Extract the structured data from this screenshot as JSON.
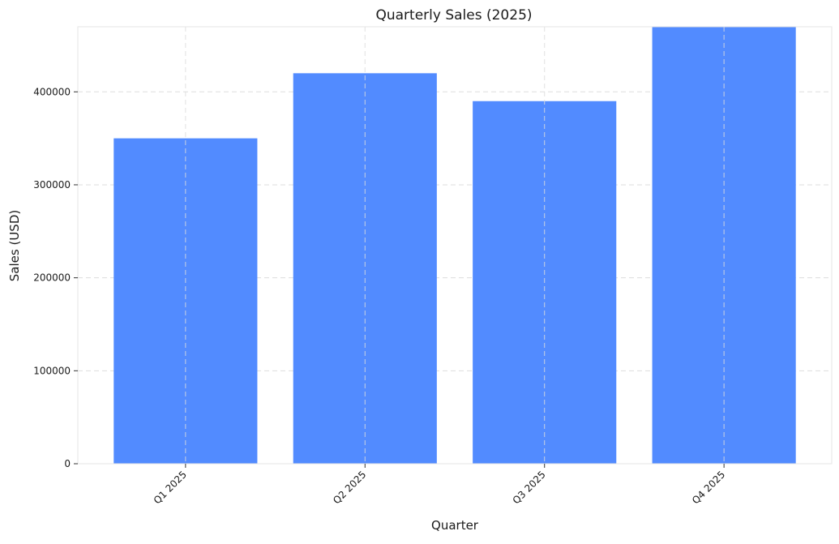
{
  "chart_data": {
    "type": "bar",
    "title": "Quarterly Sales (2025)",
    "xlabel": "Quarter",
    "ylabel": "Sales (USD)",
    "categories": [
      "Q1 2025",
      "Q2 2025",
      "Q3 2025",
      "Q4 2025"
    ],
    "values": [
      350000,
      420000,
      390000,
      470000
    ],
    "ylim": [
      0,
      470000
    ],
    "yticks": [
      0,
      100000,
      200000,
      300000,
      400000
    ],
    "ytick_labels": [
      "0",
      "100000",
      "200000",
      "300000",
      "400000"
    ],
    "grid": true,
    "bar_color": "#528bff",
    "grid_color": "#dddddd",
    "spine_color": "#e6e6e6"
  }
}
